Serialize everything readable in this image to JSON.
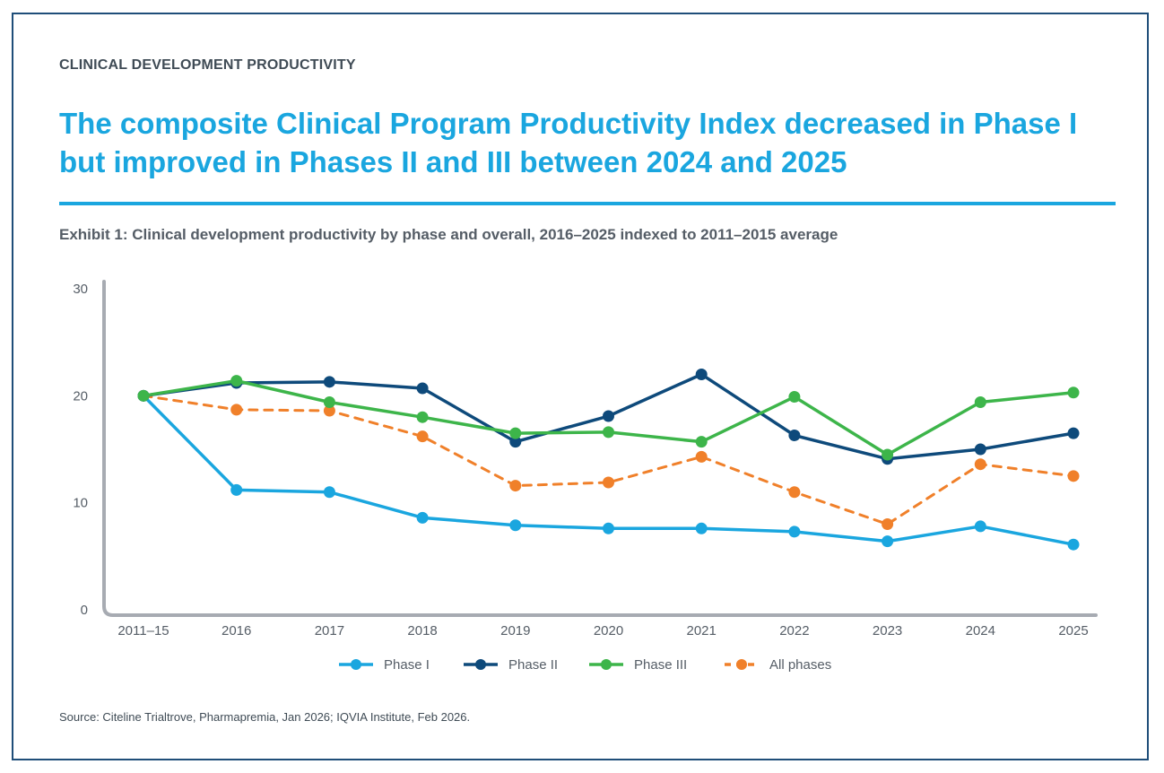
{
  "kicker": "CLINICAL DEVELOPMENT PRODUCTIVITY",
  "headline": "The composite Clinical Program Productivity Index decreased in Phase I but improved in Phases II and III between 2024 and 2025",
  "subtitle": "Exhibit 1: Clinical development productivity by phase and overall, 2016–2025 indexed to 2011–2015 average",
  "source": "Source: Citeline Trialtrove, Pharmapremia, Jan 2026; IQVIA Institute, Feb 2026.",
  "chart_data": {
    "type": "line",
    "title": "",
    "xlabel": "",
    "ylabel": "",
    "categories": [
      "2011–15",
      "2016",
      "2017",
      "2018",
      "2019",
      "2020",
      "2021",
      "2022",
      "2023",
      "2024",
      "2025"
    ],
    "ylim": [
      0,
      30
    ],
    "yticks": [
      0,
      10,
      20,
      30
    ],
    "grid": false,
    "legend_position": "bottom",
    "series": [
      {
        "name": "Phase I",
        "color": "#1aa6df",
        "dashed": false,
        "values": [
          20.0,
          11.2,
          11.0,
          8.6,
          7.9,
          7.6,
          7.6,
          7.3,
          6.4,
          7.8,
          6.1
        ]
      },
      {
        "name": "Phase II",
        "color": "#0e4a7b",
        "dashed": false,
        "values": [
          20.0,
          21.2,
          21.3,
          20.7,
          15.7,
          18.1,
          22.0,
          16.3,
          14.1,
          15.0,
          16.5
        ]
      },
      {
        "name": "Phase III",
        "color": "#3db54a",
        "dashed": false,
        "values": [
          20.0,
          21.4,
          19.4,
          18.0,
          16.5,
          16.6,
          15.7,
          19.9,
          14.5,
          19.4,
          20.3
        ]
      },
      {
        "name": "All phases",
        "color": "#f0802a",
        "dashed": true,
        "values": [
          20.0,
          18.7,
          18.6,
          16.2,
          11.6,
          11.9,
          14.3,
          11.0,
          8.0,
          13.6,
          12.5
        ]
      }
    ]
  }
}
